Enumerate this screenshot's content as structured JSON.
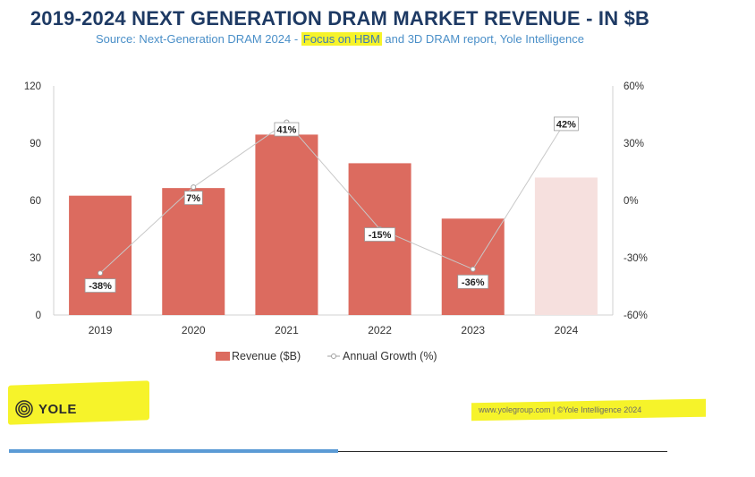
{
  "title": "2019-2024 NEXT GENERATION DRAM MARKET REVENUE - IN $B",
  "subtitle": {
    "prefix": "Source: Next-Generation DRAM 2024 - ",
    "highlight": "Focus on HBM",
    "suffix": " and 3D DRAM report, Yole Intelligence"
  },
  "colors": {
    "bar": "#dc6b5f",
    "bar_forecast": "#f6e0de",
    "line": "#c8c8c8",
    "highlight": "#f6f32a",
    "title": "#1e3a64",
    "subtitle": "#4a8fc8"
  },
  "chart_data": {
    "type": "bar",
    "categories": [
      "2019",
      "2020",
      "2021",
      "2022",
      "2023",
      "2024"
    ],
    "series": [
      {
        "name": "Revenue ($B)",
        "type": "bar",
        "axis": "left",
        "values": [
          62.5,
          66.5,
          94.5,
          79.5,
          50.5,
          72
        ],
        "forecast_index": 5
      },
      {
        "name": "Annual Growth (%)",
        "type": "line",
        "axis": "right",
        "values": [
          -38,
          7,
          41,
          -15,
          -36,
          42
        ],
        "labels": [
          "-38%",
          "7%",
          "41%",
          "-15%",
          "-36%",
          "42%"
        ]
      }
    ],
    "ylim": [
      0,
      120
    ],
    "y_ticks": [
      "0",
      "30",
      "60",
      "90",
      "120"
    ],
    "y2lim": [
      -60,
      60
    ],
    "y2_ticks": [
      "-60%",
      "-30%",
      "0%",
      "30%",
      "60%"
    ],
    "legend_position": "bottom-center",
    "grid": false
  },
  "footer": {
    "logo_text": "YOLE",
    "copyright": "www.yolegroup.com | ©Yole Intelligence 2024"
  },
  "icons": {
    "logo": "yole-logo-icon"
  }
}
